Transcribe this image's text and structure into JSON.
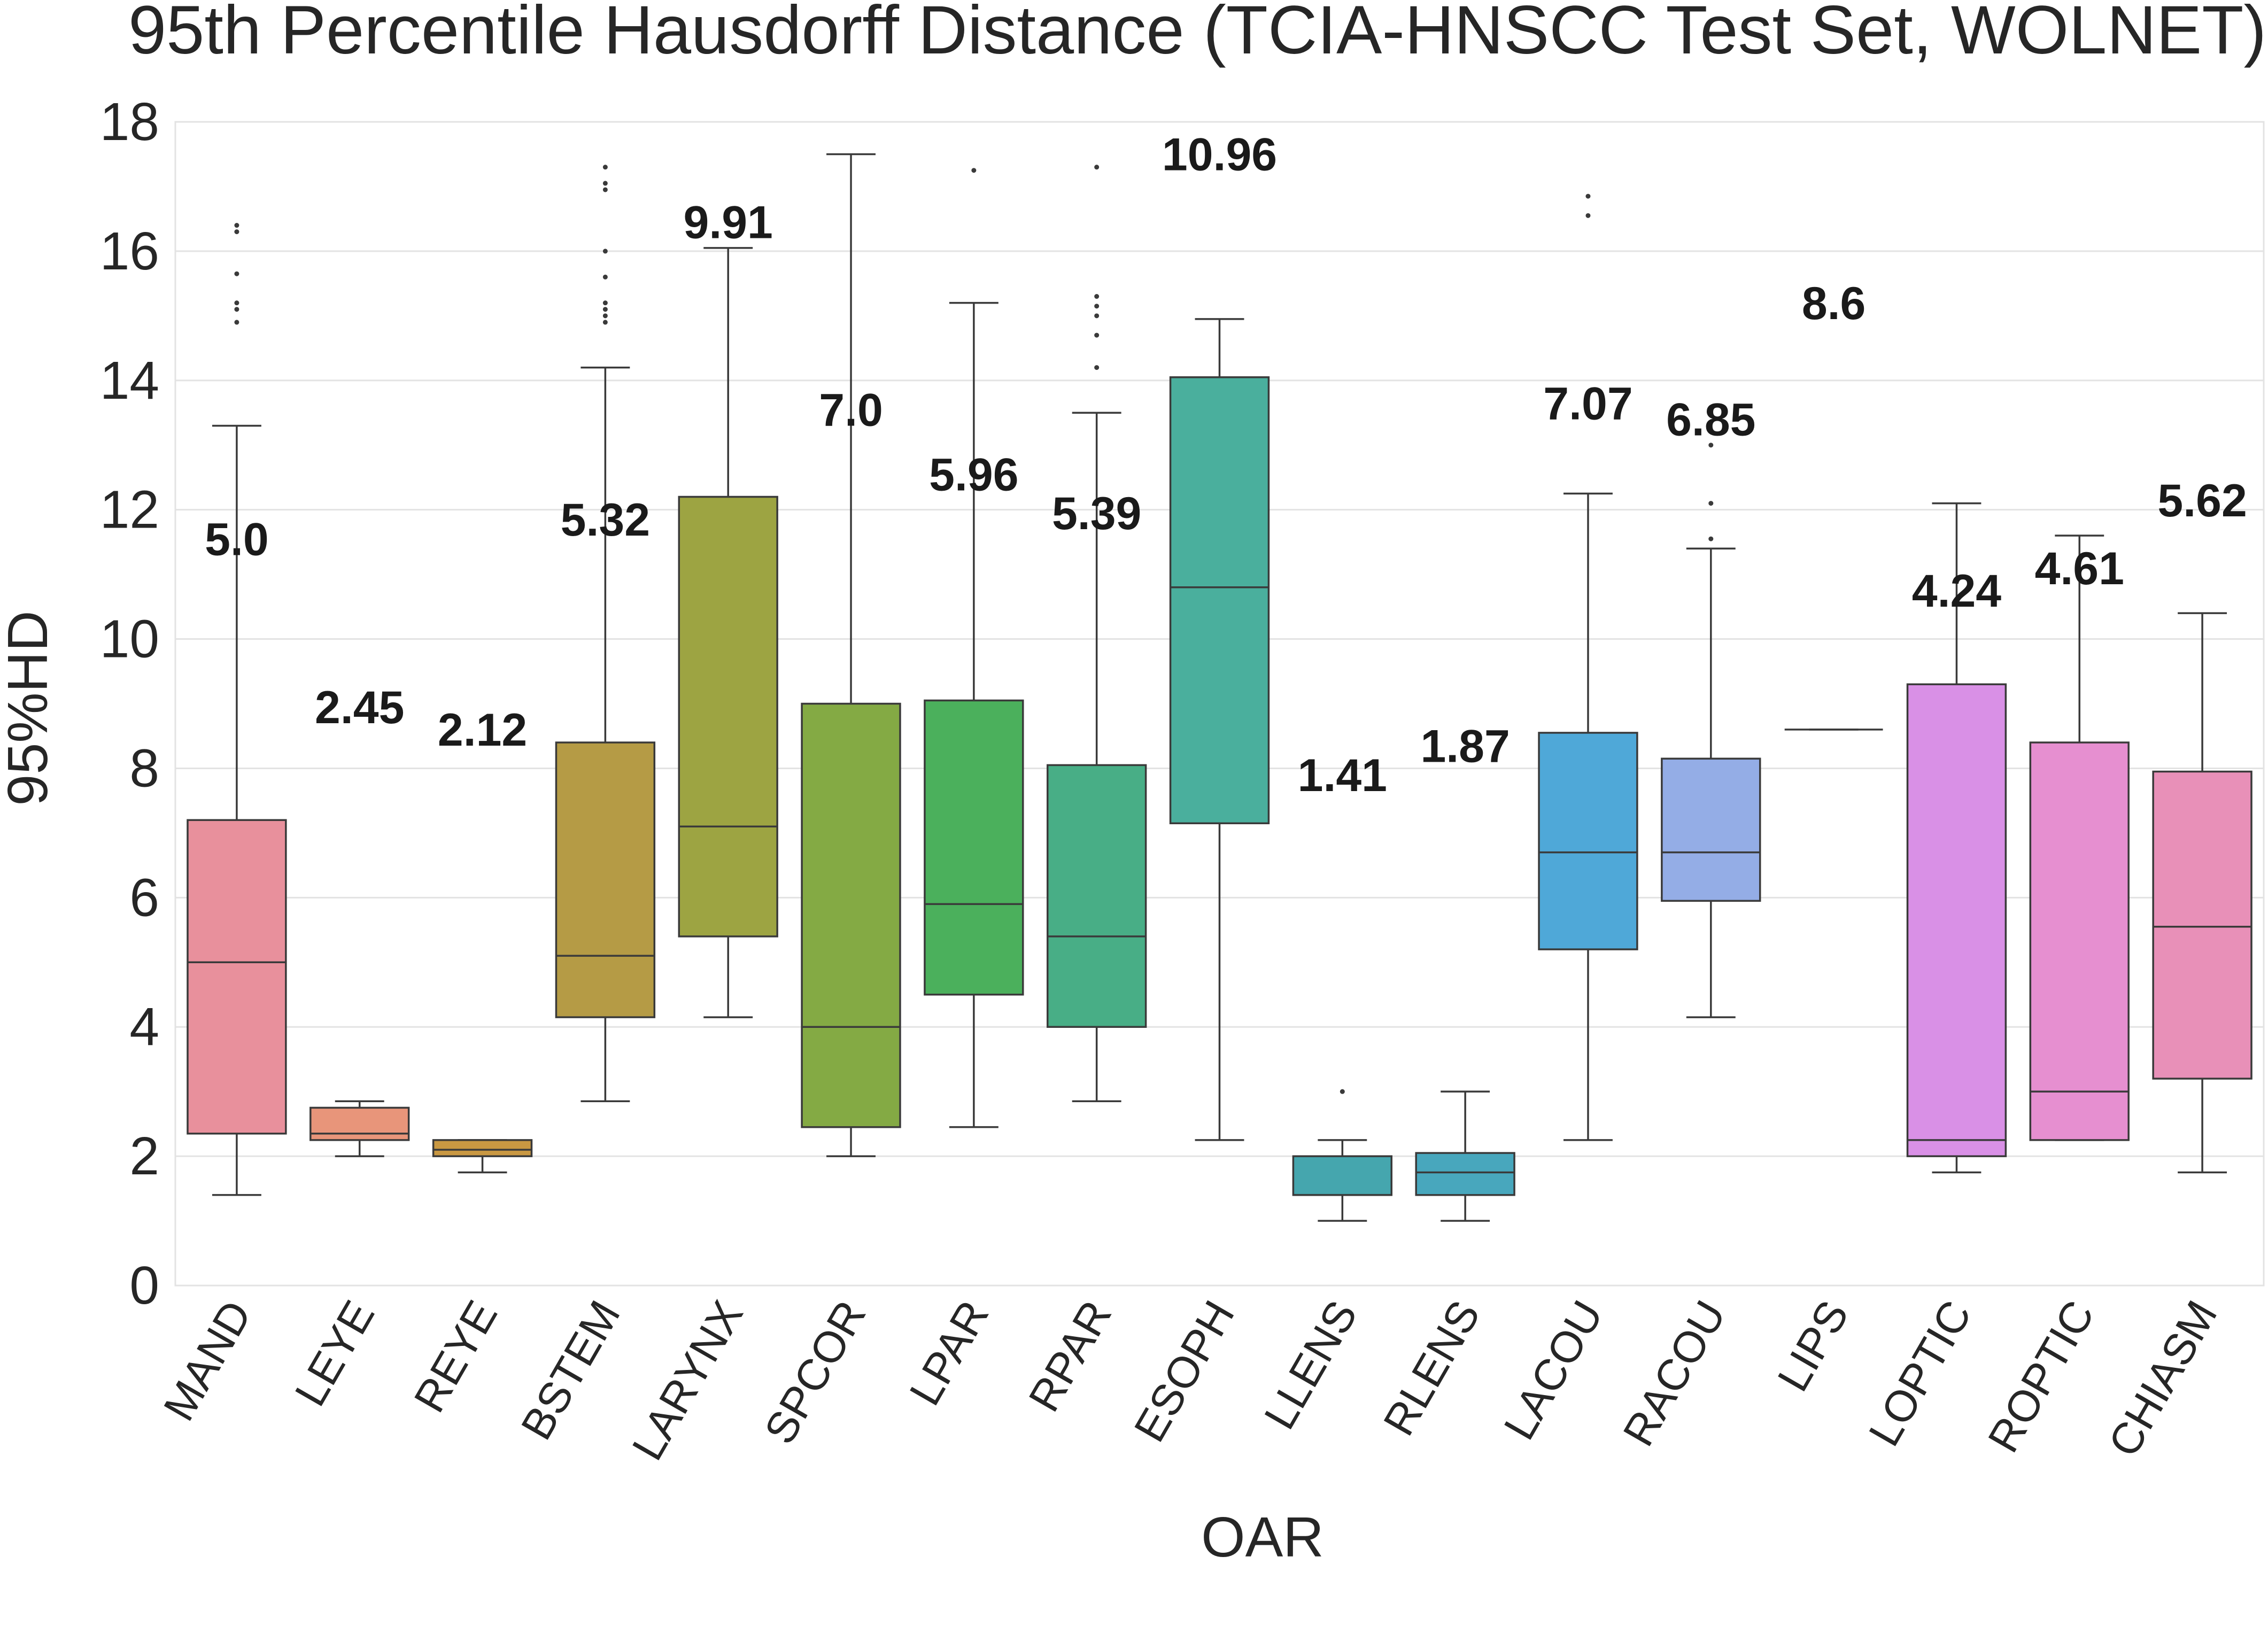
{
  "chart_data": {
    "type": "box",
    "title": "95th Percentile Hausdorff Distance (TCIA-HNSCC Test Set, WOLNET)",
    "xlabel": "OAR",
    "ylabel": "95%HD",
    "ylim": [
      0,
      18
    ],
    "yticks": [
      0,
      2,
      4,
      6,
      8,
      10,
      12,
      14,
      16,
      18
    ],
    "grid": true,
    "categories": [
      "MAND",
      "LEYE",
      "REYE",
      "BSTEM",
      "LARYNX",
      "SPCOR",
      "LPAR",
      "RPAR",
      "ESOPH",
      "LLENS",
      "RLENS",
      "LACOU",
      "RACOU",
      "LIPS",
      "LOPTIC",
      "ROPTIC",
      "CHIASM"
    ],
    "boxes": [
      {
        "name": "MAND",
        "color": "#e8909c",
        "whislo": 1.4,
        "q1": 2.35,
        "med": 5.0,
        "q3": 7.2,
        "whishi": 13.3,
        "fliers": [
          14.9,
          15.1,
          15.2,
          15.65,
          16.3,
          16.4
        ],
        "mean_label": "5.0",
        "label_y": 11.3
      },
      {
        "name": "LEYE",
        "color": "#e8957a",
        "whislo": 2.0,
        "q1": 2.25,
        "med": 2.35,
        "q3": 2.75,
        "whishi": 2.85,
        "fliers": [],
        "mean_label": "2.45",
        "label_y": 8.7
      },
      {
        "name": "REYE",
        "color": "#c99842",
        "whislo": 1.75,
        "q1": 2.0,
        "med": 2.1,
        "q3": 2.25,
        "whishi": 2.25,
        "fliers": [],
        "mean_label": "2.12",
        "label_y": 8.35
      },
      {
        "name": "BSTEM",
        "color": "#b59b45",
        "whislo": 2.85,
        "q1": 4.15,
        "med": 5.1,
        "q3": 8.4,
        "whishi": 14.2,
        "fliers": [
          14.9,
          15.0,
          15.1,
          15.2,
          15.6,
          16.0,
          16.95,
          17.05,
          17.3
        ],
        "mean_label": "5.32",
        "label_y": 11.6
      },
      {
        "name": "LARYNX",
        "color": "#9da442",
        "whislo": 4.15,
        "q1": 5.4,
        "med": 7.1,
        "q3": 12.2,
        "whishi": 16.05,
        "fliers": [],
        "mean_label": "9.91",
        "label_y": 16.2
      },
      {
        "name": "SPCOR",
        "color": "#84aa44",
        "whislo": 2.0,
        "q1": 2.45,
        "med": 4.0,
        "q3": 9.0,
        "whishi": 17.5,
        "fliers": [],
        "mean_label": "7.0",
        "label_y": 13.3
      },
      {
        "name": "LPAR",
        "color": "#4bb05c",
        "whislo": 2.45,
        "q1": 4.5,
        "med": 5.9,
        "q3": 9.05,
        "whishi": 15.2,
        "fliers": [
          17.25
        ],
        "mean_label": "5.96",
        "label_y": 12.3
      },
      {
        "name": "RPAR",
        "color": "#48ae86",
        "whislo": 2.85,
        "q1": 4.0,
        "med": 5.4,
        "q3": 8.05,
        "whishi": 13.5,
        "fliers": [
          14.2,
          14.7,
          15.0,
          15.15,
          15.3,
          17.3
        ],
        "mean_label": "5.39",
        "label_y": 11.7
      },
      {
        "name": "ESOPH",
        "color": "#4aaf9d",
        "whislo": 2.25,
        "q1": 7.15,
        "med": 10.8,
        "q3": 14.05,
        "whishi": 14.95,
        "fliers": [],
        "mean_label": "10.96",
        "label_y": 17.25
      },
      {
        "name": "LLENS",
        "color": "#45a6ae",
        "whislo": 1.0,
        "q1": 1.4,
        "med": 1.4,
        "q3": 2.0,
        "whishi": 2.25,
        "fliers": [
          3.0
        ],
        "mean_label": "1.41",
        "label_y": 7.65
      },
      {
        "name": "RLENS",
        "color": "#48a7bd",
        "whislo": 1.0,
        "q1": 1.4,
        "med": 1.75,
        "q3": 2.05,
        "whishi": 3.0,
        "fliers": [],
        "mean_label": "1.87",
        "label_y": 8.1
      },
      {
        "name": "LACOU",
        "color": "#4fa8d8",
        "whislo": 2.25,
        "q1": 5.2,
        "med": 6.7,
        "q3": 8.55,
        "whishi": 12.25,
        "fliers": [
          16.55,
          16.85
        ],
        "mean_label": "7.07",
        "label_y": 13.4
      },
      {
        "name": "RACOU",
        "color": "#94ade6",
        "whislo": 4.15,
        "q1": 5.95,
        "med": 6.7,
        "q3": 8.15,
        "whishi": 11.4,
        "fliers": [
          11.55,
          12.1,
          13.0
        ],
        "mean_label": "6.85",
        "label_y": 13.15
      },
      {
        "name": "LIPS",
        "color": "#b59ee6",
        "whislo": 8.6,
        "q1": 8.6,
        "med": 8.6,
        "q3": 8.6,
        "whishi": 8.6,
        "fliers": [],
        "mean_label": "8.6",
        "label_y": 14.95
      },
      {
        "name": "LOPTIC",
        "color": "#d990e6",
        "whislo": 1.75,
        "q1": 2.0,
        "med": 2.25,
        "q3": 9.3,
        "whishi": 12.1,
        "fliers": [],
        "mean_label": "4.24",
        "label_y": 10.5
      },
      {
        "name": "ROPTIC",
        "color": "#e68fd0",
        "whislo": 2.25,
        "q1": 2.25,
        "med": 3.0,
        "q3": 8.4,
        "whishi": 11.6,
        "fliers": [],
        "mean_label": "4.61",
        "label_y": 10.85
      },
      {
        "name": "CHIASM",
        "color": "#e890b8",
        "whislo": 1.75,
        "q1": 3.2,
        "med": 5.55,
        "q3": 7.95,
        "whishi": 10.4,
        "fliers": [],
        "mean_label": "5.62",
        "label_y": 11.9
      }
    ]
  }
}
